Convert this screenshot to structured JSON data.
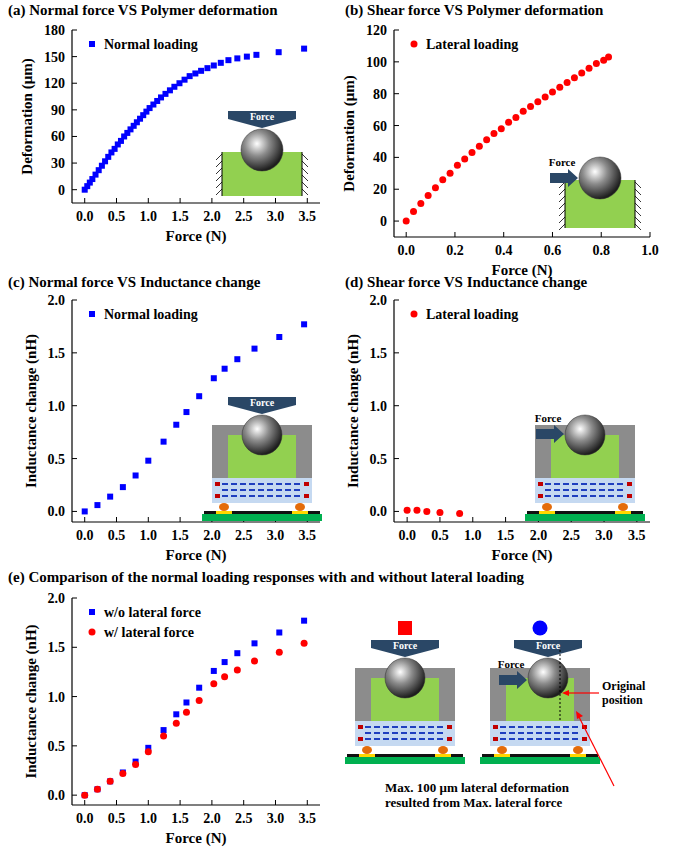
{
  "chart_data": [
    {
      "type": "scatter",
      "title": "(a) Normal force VS Polymer deformation",
      "x_label": "Force (N)",
      "y_label": "Deformation (μm)",
      "xlim": [
        -0.2,
        3.7
      ],
      "ylim": [
        -15,
        180
      ],
      "xticks": [
        {
          "value": 0,
          "label": "0.0"
        },
        0.5,
        {
          "value": 1,
          "label": "1.0"
        },
        1.5,
        {
          "value": 2,
          "label": "2.0"
        },
        2.5,
        {
          "value": 3,
          "label": "3.0"
        },
        3.5
      ],
      "yticks": [
        0,
        30,
        60,
        90,
        120,
        150,
        180
      ],
      "grid": false,
      "legend": "upper left",
      "x": [
        0,
        0.04,
        0.08,
        0.12,
        0.17,
        0.22,
        0.27,
        0.32,
        0.37,
        0.42,
        0.47,
        0.52,
        0.57,
        0.62,
        0.67,
        0.72,
        0.77,
        0.82,
        0.87,
        0.92,
        0.97,
        1.02,
        1.08,
        1.14,
        1.2,
        1.27,
        1.34,
        1.41,
        1.49,
        1.57,
        1.65,
        1.74,
        1.83,
        1.93,
        2.03,
        2.14,
        2.26,
        2.4,
        2.55,
        2.7,
        3.05,
        3.45
      ],
      "series": [
        {
          "name": "Normal loading",
          "color": "#0000ff",
          "marker": "square",
          "values": [
            0,
            4,
            8,
            12,
            17,
            22,
            27,
            32,
            37,
            42,
            46,
            51,
            55,
            60,
            64,
            68,
            72,
            76,
            80,
            84,
            88,
            92,
            96,
            100,
            104,
            108,
            112,
            116,
            120,
            124,
            128,
            131,
            134,
            137,
            140,
            143,
            146,
            148,
            150,
            152,
            155,
            159
          ]
        }
      ],
      "annotations": [
        "Force"
      ]
    },
    {
      "type": "scatter",
      "title": "(b) Shear force VS Polymer deformation",
      "x_label": "Force (N)",
      "y_label": "Deformation (μm)",
      "xlim": [
        -0.05,
        1.0
      ],
      "ylim": [
        -10,
        120
      ],
      "xticks": [
        {
          "value": 0,
          "label": "0.0"
        },
        0.2,
        0.4,
        0.6,
        0.8,
        {
          "value": 1,
          "label": "1.0"
        }
      ],
      "yticks": [
        0,
        20,
        40,
        60,
        80,
        100,
        120
      ],
      "grid": false,
      "legend": "upper left",
      "x": [
        0,
        0.03,
        0.06,
        0.09,
        0.12,
        0.15,
        0.18,
        0.21,
        0.24,
        0.27,
        0.3,
        0.33,
        0.36,
        0.39,
        0.42,
        0.45,
        0.48,
        0.51,
        0.54,
        0.57,
        0.6,
        0.63,
        0.66,
        0.69,
        0.72,
        0.75,
        0.78,
        0.81,
        0.83
      ],
      "series": [
        {
          "name": "Lateral loading",
          "color": "#ff0000",
          "marker": "circle",
          "values": [
            0,
            6,
            11,
            16,
            21,
            26,
            30,
            35,
            39,
            43,
            47,
            51,
            55,
            58,
            62,
            65,
            69,
            72,
            75,
            78,
            81,
            84,
            87,
            90,
            93,
            96,
            99,
            101,
            103
          ]
        }
      ],
      "annotations": [
        "Force"
      ]
    },
    {
      "type": "scatter",
      "title": "(c) Normal force VS Inductance change",
      "x_label": "Force (N)",
      "y_label": "Inductance change (nH)",
      "xlim": [
        -0.2,
        3.7
      ],
      "ylim": [
        -0.1,
        2.0
      ],
      "xticks": [
        {
          "value": 0,
          "label": "0.0"
        },
        0.5,
        {
          "value": 1,
          "label": "1.0"
        },
        1.5,
        {
          "value": 2,
          "label": "2.0"
        },
        2.5,
        {
          "value": 3,
          "label": "3.0"
        },
        3.5
      ],
      "yticks": [
        {
          "value": 0,
          "label": "0.0"
        },
        0.5,
        {
          "value": 1,
          "label": "1.0"
        },
        1.5,
        {
          "value": 2,
          "label": "2.0"
        }
      ],
      "grid": false,
      "legend": "upper left",
      "x": [
        0,
        0.2,
        0.4,
        0.6,
        0.8,
        1.0,
        1.24,
        1.44,
        1.6,
        1.8,
        2.03,
        2.2,
        2.4,
        2.67,
        3.06,
        3.45
      ],
      "series": [
        {
          "name": "Normal loading",
          "color": "#0000ff",
          "marker": "square",
          "values": [
            0,
            0.06,
            0.14,
            0.23,
            0.34,
            0.48,
            0.66,
            0.82,
            0.94,
            1.09,
            1.26,
            1.35,
            1.44,
            1.54,
            1.65,
            1.77
          ]
        }
      ],
      "annotations": [
        "Force"
      ]
    },
    {
      "type": "scatter",
      "title": "(d) Shear force VS Inductance change",
      "x_label": "Force (N)",
      "y_label": "Inductance change (nH)",
      "xlim": [
        -0.2,
        3.7
      ],
      "ylim": [
        -0.1,
        2.0
      ],
      "xticks": [
        {
          "value": 0,
          "label": "0.0"
        },
        0.5,
        {
          "value": 1,
          "label": "1.0"
        },
        1.5,
        {
          "value": 2,
          "label": "2.0"
        },
        2.5,
        {
          "value": 3,
          "label": "3.0"
        },
        3.5
      ],
      "yticks": [
        {
          "value": 0,
          "label": "0.0"
        },
        0.5,
        {
          "value": 1,
          "label": "1.0"
        },
        1.5,
        {
          "value": 2,
          "label": "2.0"
        }
      ],
      "grid": false,
      "legend": "upper left",
      "x": [
        0,
        0.15,
        0.3,
        0.5,
        0.8
      ],
      "series": [
        {
          "name": "Lateral loading",
          "color": "#ff0000",
          "marker": "circle",
          "values": [
            0.01,
            0.01,
            0,
            -0.01,
            -0.02
          ]
        }
      ],
      "annotations": [
        "Force"
      ]
    },
    {
      "type": "scatter",
      "title": "(e) Comparison of the normal loading responses with and without lateral loading",
      "x_label": "Force (N)",
      "y_label": "Inductance change (nH)",
      "xlim": [
        -0.2,
        3.7
      ],
      "ylim": [
        -0.1,
        2.0
      ],
      "xticks": [
        {
          "value": 0,
          "label": "0.0"
        },
        0.5,
        {
          "value": 1,
          "label": "1.0"
        },
        1.5,
        {
          "value": 2,
          "label": "2.0"
        },
        2.5,
        {
          "value": 3,
          "label": "3.0"
        },
        3.5
      ],
      "yticks": [
        {
          "value": 0,
          "label": "0.0"
        },
        0.5,
        {
          "value": 1,
          "label": "1.0"
        },
        1.5,
        {
          "value": 2,
          "label": "2.0"
        }
      ],
      "grid": false,
      "legend": "upper left",
      "x": [
        0,
        0.2,
        0.4,
        0.6,
        0.8,
        1.0,
        1.24,
        1.44,
        1.6,
        1.8,
        2.03,
        2.2,
        2.4,
        2.67,
        3.06,
        3.45
      ],
      "series": [
        {
          "name": "w/o lateral force",
          "color": "#0000ff",
          "marker": "square",
          "values": [
            0,
            0.06,
            0.14,
            0.23,
            0.34,
            0.48,
            0.66,
            0.82,
            0.94,
            1.09,
            1.26,
            1.35,
            1.44,
            1.54,
            1.65,
            1.77
          ]
        },
        {
          "name": "w/ lateral force",
          "color": "#ff0000",
          "marker": "circle",
          "values": [
            0,
            0.06,
            0.14,
            0.22,
            0.31,
            0.44,
            0.6,
            0.73,
            0.84,
            0.96,
            1.13,
            1.2,
            1.27,
            1.36,
            1.45,
            1.54
          ]
        }
      ],
      "annotations": [
        "Force",
        "Force",
        "Force",
        "Original position",
        "Max. 100 μm lateral deformation resulted from Max. lateral force"
      ]
    }
  ]
}
